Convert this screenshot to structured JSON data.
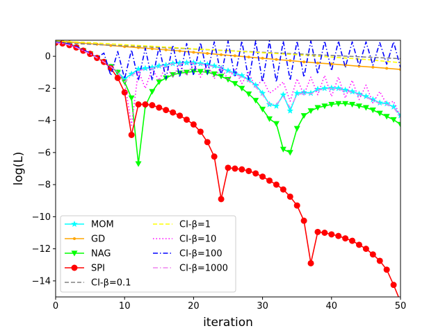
{
  "chart_data": {
    "type": "line",
    "title": "",
    "xlabel": "iteration",
    "ylabel": "log(L)",
    "xlim": [
      0,
      50
    ],
    "ylim": [
      -15,
      1
    ],
    "xticks": [
      0,
      10,
      20,
      30,
      40,
      50
    ],
    "yticks": [
      0,
      -2,
      -4,
      -6,
      -8,
      -10,
      -12,
      -14
    ],
    "xtick_labels": [
      "0",
      "10",
      "20",
      "30",
      "40",
      "50"
    ],
    "ytick_labels": [
      "0",
      "−2",
      "−4",
      "−6",
      "−8",
      "−10",
      "−12",
      "−14"
    ],
    "legend_position": "lower-left",
    "series": [
      {
        "name": "MOM",
        "color": "#00ffff",
        "marker": "star",
        "dash": "solid",
        "x": [
          0,
          1,
          2,
          3,
          4,
          5,
          6,
          7,
          8,
          9,
          10,
          11,
          12,
          13,
          14,
          15,
          16,
          17,
          18,
          19,
          20,
          21,
          22,
          23,
          24,
          25,
          26,
          27,
          28,
          29,
          30,
          31,
          32,
          33,
          34,
          35,
          36,
          37,
          38,
          39,
          40,
          41,
          42,
          43,
          44,
          45,
          46,
          47,
          48,
          49,
          50
        ],
        "y": [
          0.85,
          0.8,
          0.7,
          0.55,
          0.35,
          0.15,
          -0.1,
          -0.35,
          -0.65,
          -1.0,
          -1.4,
          -1.1,
          -0.8,
          -0.75,
          -0.7,
          -0.6,
          -0.55,
          -0.45,
          -0.42,
          -0.4,
          -0.4,
          -0.45,
          -0.5,
          -0.6,
          -0.75,
          -0.9,
          -1.05,
          -1.2,
          -1.45,
          -1.8,
          -2.3,
          -3.0,
          -3.1,
          -2.4,
          -3.4,
          -2.3,
          -2.25,
          -2.3,
          -2.05,
          -2.0,
          -1.98,
          -2.0,
          -2.1,
          -2.2,
          -2.35,
          -2.5,
          -2.7,
          -2.9,
          -2.95,
          -3.15,
          -3.7
        ]
      },
      {
        "name": "GD",
        "color": "#ffa500",
        "marker": "dot",
        "dash": "solid",
        "x": [
          0,
          2,
          4,
          6,
          8,
          10,
          12,
          14,
          16,
          18,
          20,
          22,
          24,
          26,
          28,
          30,
          32,
          34,
          36,
          38,
          40,
          42,
          44,
          46,
          48,
          50
        ],
        "y": [
          0.95,
          0.9,
          0.82,
          0.75,
          0.67,
          0.6,
          0.54,
          0.47,
          0.4,
          0.33,
          0.25,
          0.18,
          0.1,
          0.03,
          -0.05,
          -0.12,
          -0.2,
          -0.27,
          -0.35,
          -0.42,
          -0.48,
          -0.55,
          -0.62,
          -0.68,
          -0.75,
          -0.82
        ]
      },
      {
        "name": "NAG",
        "color": "#00ff00",
        "marker": "triangle-down",
        "dash": "solid",
        "x": [
          0,
          1,
          2,
          3,
          4,
          5,
          6,
          7,
          8,
          9,
          10,
          11,
          12,
          13,
          14,
          15,
          16,
          17,
          18,
          19,
          20,
          21,
          22,
          23,
          24,
          25,
          26,
          27,
          28,
          29,
          30,
          31,
          32,
          33,
          34,
          35,
          36,
          37,
          38,
          39,
          40,
          41,
          42,
          43,
          44,
          45,
          46,
          47,
          48,
          49,
          50
        ],
        "y": [
          0.85,
          0.8,
          0.7,
          0.55,
          0.35,
          0.15,
          -0.1,
          -0.35,
          -0.65,
          -1.0,
          -1.6,
          -2.6,
          -6.7,
          -3.1,
          -2.2,
          -1.6,
          -1.35,
          -1.15,
          -1.05,
          -1.0,
          -0.95,
          -0.95,
          -1.0,
          -1.1,
          -1.25,
          -1.45,
          -1.7,
          -2.0,
          -2.35,
          -2.75,
          -3.3,
          -3.9,
          -4.2,
          -5.8,
          -6.0,
          -4.5,
          -3.7,
          -3.4,
          -3.2,
          -3.1,
          -3.0,
          -2.95,
          -2.95,
          -3.0,
          -3.1,
          -3.2,
          -3.35,
          -3.55,
          -3.75,
          -3.95,
          -4.25
        ]
      },
      {
        "name": "SPI",
        "color": "#ff0000",
        "marker": "circle",
        "dash": "solid",
        "x": [
          0,
          1,
          2,
          3,
          4,
          5,
          6,
          7,
          8,
          9,
          10,
          11,
          12,
          13,
          14,
          15,
          16,
          17,
          18,
          19,
          20,
          21,
          22,
          23,
          24,
          25,
          26,
          27,
          28,
          29,
          30,
          31,
          32,
          33,
          34,
          35,
          36,
          37,
          38,
          39,
          40,
          41,
          42,
          43,
          44,
          45,
          46,
          47,
          48,
          49,
          50
        ],
        "y": [
          0.85,
          0.8,
          0.7,
          0.55,
          0.35,
          0.15,
          -0.1,
          -0.35,
          -0.75,
          -1.35,
          -2.25,
          -4.9,
          -3.0,
          -3.0,
          -3.05,
          -3.2,
          -3.35,
          -3.5,
          -3.7,
          -3.95,
          -4.25,
          -4.7,
          -5.35,
          -6.25,
          -8.9,
          -6.95,
          -7.0,
          -7.05,
          -7.15,
          -7.3,
          -7.5,
          -7.75,
          -8.0,
          -8.3,
          -8.75,
          -9.3,
          -10.25,
          -12.9,
          -10.95,
          -11.0,
          -11.1,
          -11.2,
          -11.35,
          -11.5,
          -11.75,
          -12.0,
          -12.35,
          -12.75,
          -13.3,
          -14.25,
          -15.3
        ]
      },
      {
        "name": "CI-β=0.1",
        "color": "#808080",
        "marker": "none",
        "dash": "dashed",
        "x": [
          0,
          10,
          20,
          30,
          40,
          50
        ],
        "y": [
          0.85,
          0.65,
          0.45,
          0.25,
          0.05,
          -0.15
        ]
      },
      {
        "name": "CI-β=1",
        "color": "#ffff00",
        "marker": "none",
        "dash": "dashed",
        "x": [
          0,
          5,
          10,
          15,
          20,
          25,
          30,
          35,
          40,
          45,
          50
        ],
        "y": [
          0.95,
          0.85,
          0.72,
          0.6,
          0.47,
          0.35,
          0.22,
          0.1,
          -0.05,
          -0.2,
          -0.4
        ]
      },
      {
        "name": "CI-β=10",
        "color": "#ff00ff",
        "marker": "none",
        "dash": "dotted",
        "x": [
          0,
          1,
          2,
          3,
          4,
          5,
          6,
          7,
          8,
          9,
          10,
          11,
          12,
          13,
          14,
          15,
          16,
          17,
          18,
          19,
          20,
          21,
          22,
          23,
          24,
          25,
          26,
          27,
          28,
          29,
          30,
          31,
          32,
          33,
          34,
          35,
          36,
          37,
          38,
          39,
          40,
          41,
          42,
          43,
          44,
          45,
          46,
          47,
          48,
          49,
          50
        ],
        "y": [
          0.85,
          0.8,
          0.7,
          0.55,
          0.35,
          0.15,
          -0.1,
          -0.35,
          -0.65,
          -1.0,
          -1.6,
          -4.3,
          -0.9,
          -2.0,
          -0.8,
          -1.5,
          -0.6,
          -1.3,
          -0.5,
          -1.2,
          -0.45,
          -1.3,
          -0.5,
          -1.4,
          -0.6,
          -1.5,
          -0.8,
          -1.7,
          -1.0,
          -2.0,
          -1.4,
          -2.3,
          -2.0,
          -1.6,
          -2.8,
          -1.4,
          -2.4,
          -1.3,
          -2.4,
          -1.2,
          -2.5,
          -1.3,
          -2.6,
          -1.5,
          -2.7,
          -1.8,
          -2.9,
          -2.2,
          -3.0,
          -2.8,
          -3.8
        ]
      },
      {
        "name": "CI-β=100",
        "color": "#0000ff",
        "marker": "none",
        "dash": "dashdot",
        "x": [
          0,
          1,
          2,
          3,
          4,
          5,
          6,
          7,
          8,
          9,
          10,
          11,
          12,
          13,
          14,
          15,
          16,
          17,
          18,
          19,
          20,
          21,
          22,
          23,
          24,
          25,
          26,
          27,
          28,
          29,
          30,
          31,
          32,
          33,
          34,
          35,
          36,
          37,
          38,
          39,
          40,
          41,
          42,
          43,
          44,
          45,
          46,
          47,
          48,
          49,
          50
        ],
        "y": [
          0.9,
          0.85,
          0.75,
          0.6,
          0.4,
          0.2,
          -0.1,
          0.2,
          -1.2,
          0.3,
          -1.4,
          0.4,
          -1.5,
          0.5,
          -1.5,
          0.6,
          -1.4,
          0.7,
          -1.3,
          0.8,
          -1.2,
          0.85,
          -1.1,
          0.9,
          -1.2,
          0.95,
          -1.3,
          0.95,
          -1.5,
          0.95,
          -1.6,
          0.95,
          -1.6,
          0.95,
          -1.5,
          0.95,
          -1.3,
          0.95,
          -1.1,
          0.95,
          -0.9,
          0.95,
          -0.7,
          0.9,
          -0.6,
          0.9,
          -0.55,
          0.85,
          -0.5,
          0.9,
          -0.7
        ]
      },
      {
        "name": "CI-β=1000",
        "color": "#ee82ee",
        "marker": "none",
        "dash": "dashdot",
        "x": [
          0,
          1,
          2,
          3,
          4,
          5,
          6,
          7,
          8,
          9,
          10,
          11,
          12,
          13,
          14,
          15,
          16,
          17,
          18,
          19,
          20,
          21,
          22,
          23,
          24,
          25,
          26,
          27,
          28,
          29,
          30,
          31,
          32,
          33,
          34,
          35,
          36,
          37,
          38,
          39,
          40,
          41,
          42,
          43,
          44,
          45,
          46,
          47,
          48,
          49,
          50
        ],
        "y": [
          0.85,
          0.8,
          0.7,
          0.55,
          0.35,
          0.15,
          -0.1,
          -0.35,
          -0.65,
          -1.0,
          -1.6,
          -1.2,
          -0.9,
          -0.8,
          -0.75,
          -0.65,
          -0.55,
          -0.48,
          -0.45,
          -0.42,
          -0.42,
          -0.48,
          -0.55,
          -0.65,
          -0.8,
          -0.95,
          -1.1,
          -1.3,
          -1.55,
          -1.9,
          -2.4,
          -3.0,
          -3.0,
          -2.5,
          -3.2,
          -2.4,
          -2.3,
          -2.35,
          -2.1,
          -2.05,
          -2.0,
          -2.05,
          -2.15,
          -2.25,
          -2.4,
          -2.55,
          -2.75,
          -2.95,
          -3.0,
          -3.2,
          -3.8
        ]
      }
    ]
  }
}
